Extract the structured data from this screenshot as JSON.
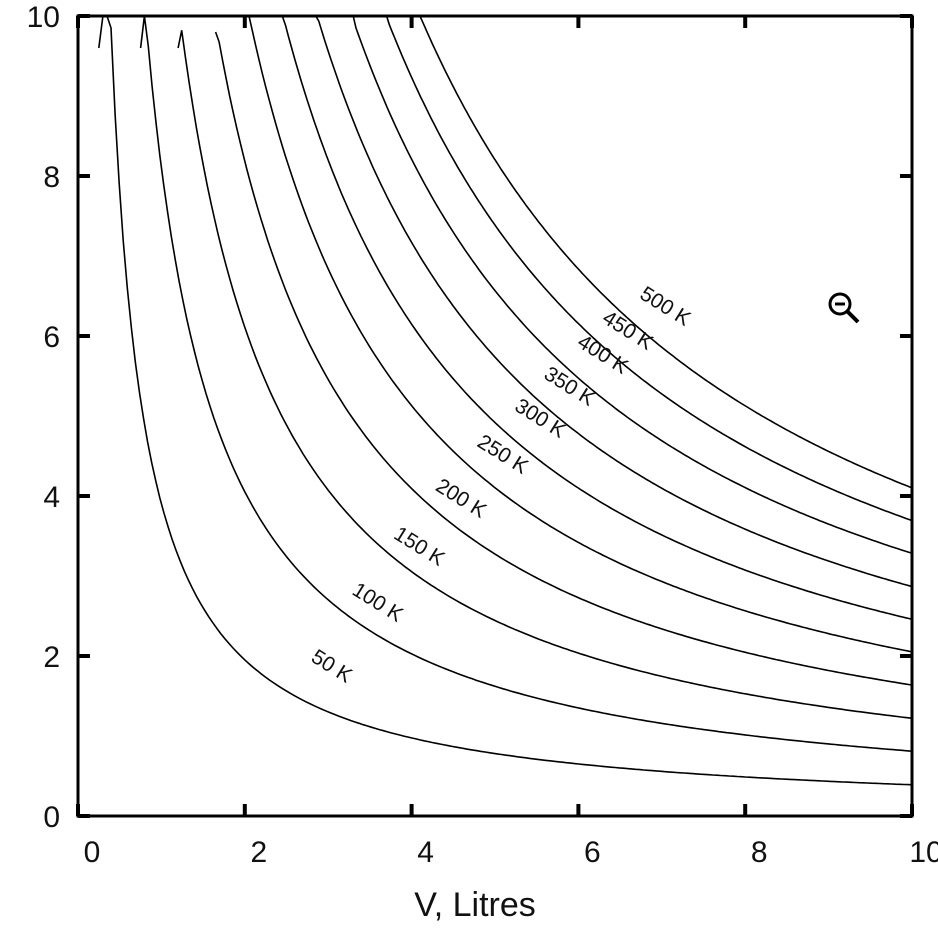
{
  "chart_data": {
    "type": "line",
    "title": "",
    "xlabel": "V, Litres",
    "ylabel": "",
    "xlim": [
      0,
      10
    ],
    "ylim": [
      0,
      10
    ],
    "xticks": [
      "0",
      "2",
      "4",
      "6",
      "8",
      "10"
    ],
    "yticks": [
      "0",
      "2",
      "4",
      "6",
      "8",
      "10"
    ],
    "grid": false,
    "legend": "none",
    "line_color": "#000000",
    "label_unit": "K",
    "series": [
      {
        "name": "50 K",
        "temperature": 50,
        "x": [
          0.25,
          0.4,
          0.6,
          0.8,
          1.0,
          1.5,
          2.0,
          3.0,
          4.0,
          6.0,
          8.0,
          10.0
        ],
        "y": [
          9.6,
          8.5,
          6.9,
          5.2,
          4.1,
          2.7,
          2.05,
          1.37,
          1.03,
          0.68,
          0.51,
          0.41
        ]
      },
      {
        "name": "100 K",
        "temperature": 100,
        "x": [
          0.75,
          1.0,
          1.5,
          2.0,
          3.0,
          4.0,
          5.0,
          6.0,
          8.0,
          10.0
        ],
        "y": [
          9.6,
          8.2,
          5.47,
          4.1,
          2.73,
          2.05,
          1.64,
          1.37,
          1.03,
          0.82
        ]
      },
      {
        "name": "150 K",
        "temperature": 150,
        "x": [
          1.2,
          1.5,
          2.0,
          3.0,
          4.0,
          5.0,
          6.0,
          8.0,
          10.0
        ],
        "y": [
          9.6,
          8.2,
          6.15,
          4.1,
          3.08,
          2.46,
          2.05,
          1.54,
          1.23
        ]
      },
      {
        "name": "200 K",
        "temperature": 200,
        "x": [
          1.65,
          2.0,
          3.0,
          4.0,
          5.0,
          6.0,
          8.0,
          10.0
        ],
        "y": [
          9.8,
          8.2,
          5.47,
          4.1,
          3.28,
          2.73,
          2.05,
          1.64
        ]
      },
      {
        "name": "250 K",
        "temperature": 250,
        "x": [
          2.05,
          3.0,
          4.0,
          5.0,
          6.0,
          8.0,
          10.0
        ],
        "y": [
          10.0,
          6.84,
          5.13,
          4.1,
          3.42,
          2.57,
          2.05
        ]
      },
      {
        "name": "300 K",
        "temperature": 300,
        "x": [
          2.45,
          3.0,
          4.0,
          5.0,
          6.0,
          8.0,
          10.0
        ],
        "y": [
          10.0,
          8.2,
          6.15,
          4.92,
          4.1,
          3.08,
          2.46
        ]
      },
      {
        "name": "350 K",
        "temperature": 350,
        "x": [
          2.85,
          4.0,
          5.0,
          6.0,
          8.0,
          10.0
        ],
        "y": [
          10.0,
          7.18,
          5.74,
          4.79,
          3.59,
          2.87
        ]
      },
      {
        "name": "400 K",
        "temperature": 400,
        "x": [
          3.3,
          4.0,
          5.0,
          6.0,
          8.0,
          10.0
        ],
        "y": [
          10.0,
          8.2,
          6.56,
          5.47,
          4.1,
          3.28
        ]
      },
      {
        "name": "450 K",
        "temperature": 450,
        "x": [
          3.7,
          4.0,
          5.0,
          6.0,
          8.0,
          10.0
        ],
        "y": [
          10.0,
          9.23,
          7.38,
          6.15,
          4.62,
          3.69
        ]
      },
      {
        "name": "500 K",
        "temperature": 500,
        "x": [
          4.1,
          5.0,
          6.0,
          8.0,
          10.0
        ],
        "y": [
          10.0,
          8.2,
          6.84,
          5.13,
          4.1
        ]
      }
    ],
    "curve_labels": [
      {
        "text": "50 K",
        "x": 3.0,
        "y": 1.8
      },
      {
        "text": "100 K",
        "x": 3.55,
        "y": 2.6
      },
      {
        "text": "150 K",
        "x": 4.05,
        "y": 3.3
      },
      {
        "text": "200 K",
        "x": 4.55,
        "y": 3.9
      },
      {
        "text": "250 K",
        "x": 5.05,
        "y": 4.45
      },
      {
        "text": "300 K",
        "x": 5.5,
        "y": 4.9
      },
      {
        "text": "350 K",
        "x": 5.85,
        "y": 5.3
      },
      {
        "text": "400 K",
        "x": 6.25,
        "y": 5.7
      },
      {
        "text": "450 K",
        "x": 6.55,
        "y": 6.0
      },
      {
        "text": "500 K",
        "x": 7.0,
        "y": 6.3
      }
    ]
  },
  "zoom_control": {
    "icon": "zoom-out-icon"
  }
}
